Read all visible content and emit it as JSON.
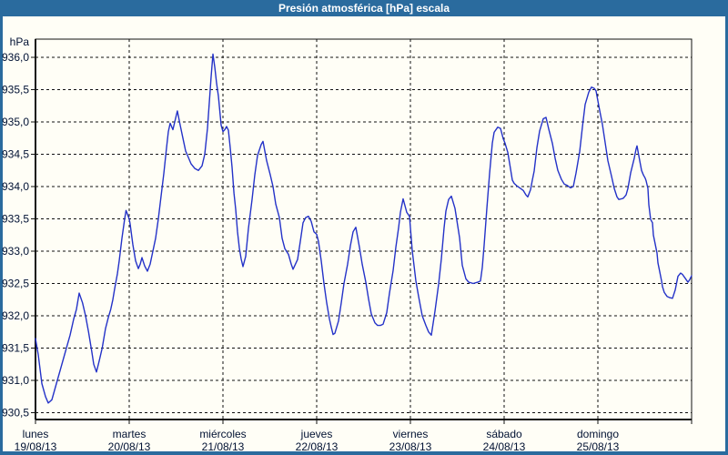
{
  "window": {
    "title": "Presión atmosférica [hPa] escala"
  },
  "colors": {
    "titlebar": "#2a6b9e",
    "frame": "#2a6b9e",
    "content_bg": "#fffef6",
    "grid": "#111111",
    "text": "#001133",
    "line": "#2432c8"
  },
  "chart_data": {
    "type": "line",
    "title": "Presión atmosférica [hPa] escala",
    "xlabel": "",
    "ylabel": "hPa",
    "ylim": [
      930.5,
      936.0
    ],
    "x_range_days": [
      0,
      7
    ],
    "grid": "dashed",
    "legend": "none",
    "y_tick_values": [
      936.0,
      935.5,
      935.0,
      934.5,
      934.0,
      933.5,
      933.0,
      932.5,
      932.0,
      931.5,
      931.0,
      930.5
    ],
    "y_tick_labels": [
      "936,0",
      "935,5",
      "935,0",
      "934,5",
      "934,0",
      "933,5",
      "933,0",
      "932,5",
      "932,0",
      "931,5",
      "931,0",
      "930,5"
    ],
    "x_labels": [
      {
        "t": 0,
        "day": "lunes",
        "date": "19/08/13"
      },
      {
        "t": 1,
        "day": "martes",
        "date": "20/08/13"
      },
      {
        "t": 2,
        "day": "miércoles",
        "date": "21/08/13"
      },
      {
        "t": 3,
        "day": "jueves",
        "date": "22/08/13"
      },
      {
        "t": 4,
        "day": "viernes",
        "date": "23/08/13"
      },
      {
        "t": 5,
        "day": "sábado",
        "date": "24/08/13"
      },
      {
        "t": 6,
        "day": "domingo",
        "date": "25/08/13"
      }
    ],
    "series": [
      {
        "name": "Presión atmosférica",
        "color": "#2432c8",
        "points": [
          [
            0.0,
            931.65
          ],
          [
            0.029,
            931.4
          ],
          [
            0.068,
            930.95
          ],
          [
            0.107,
            930.75
          ],
          [
            0.136,
            930.65
          ],
          [
            0.175,
            930.7
          ],
          [
            0.223,
            930.95
          ],
          [
            0.272,
            931.2
          ],
          [
            0.32,
            931.45
          ],
          [
            0.369,
            931.7
          ],
          [
            0.408,
            931.95
          ],
          [
            0.437,
            932.1
          ],
          [
            0.466,
            932.35
          ],
          [
            0.502,
            932.2
          ],
          [
            0.534,
            932.0
          ],
          [
            0.566,
            931.75
          ],
          [
            0.6,
            931.45
          ],
          [
            0.621,
            931.25
          ],
          [
            0.65,
            931.13
          ],
          [
            0.68,
            931.3
          ],
          [
            0.712,
            931.5
          ],
          [
            0.747,
            931.8
          ],
          [
            0.777,
            931.97
          ],
          [
            0.803,
            932.1
          ],
          [
            0.825,
            932.25
          ],
          [
            0.845,
            932.42
          ],
          [
            0.874,
            932.65
          ],
          [
            0.893,
            932.85
          ],
          [
            0.922,
            933.2
          ],
          [
            0.951,
            933.5
          ],
          [
            0.966,
            933.63
          ],
          [
            1.0,
            933.5
          ],
          [
            1.01,
            933.42
          ],
          [
            1.039,
            933.1
          ],
          [
            1.068,
            932.85
          ],
          [
            1.097,
            932.73
          ],
          [
            1.117,
            932.8
          ],
          [
            1.136,
            932.9
          ],
          [
            1.165,
            932.77
          ],
          [
            1.194,
            932.69
          ],
          [
            1.223,
            932.8
          ],
          [
            1.252,
            933.0
          ],
          [
            1.282,
            933.2
          ],
          [
            1.311,
            933.5
          ],
          [
            1.34,
            933.85
          ],
          [
            1.369,
            934.2
          ],
          [
            1.398,
            934.6
          ],
          [
            1.417,
            934.85
          ],
          [
            1.437,
            934.98
          ],
          [
            1.466,
            934.88
          ],
          [
            1.485,
            935.0
          ],
          [
            1.514,
            935.17
          ],
          [
            1.544,
            934.95
          ],
          [
            1.573,
            934.75
          ],
          [
            1.602,
            934.55
          ],
          [
            1.631,
            934.45
          ],
          [
            1.66,
            934.35
          ],
          [
            1.699,
            934.28
          ],
          [
            1.738,
            934.25
          ],
          [
            1.777,
            934.32
          ],
          [
            1.806,
            934.5
          ],
          [
            1.835,
            934.9
          ],
          [
            1.854,
            935.3
          ],
          [
            1.874,
            935.7
          ],
          [
            1.893,
            936.05
          ],
          [
            1.913,
            935.85
          ],
          [
            1.932,
            935.6
          ],
          [
            1.951,
            935.4
          ],
          [
            1.981,
            934.95
          ],
          [
            2.0,
            934.85
          ],
          [
            2.019,
            934.88
          ],
          [
            2.039,
            934.93
          ],
          [
            2.058,
            934.87
          ],
          [
            2.078,
            934.6
          ],
          [
            2.097,
            934.3
          ],
          [
            2.117,
            933.9
          ],
          [
            2.136,
            933.65
          ],
          [
            2.155,
            933.3
          ],
          [
            2.175,
            933.05
          ],
          [
            2.194,
            932.88
          ],
          [
            2.214,
            932.76
          ],
          [
            2.243,
            932.92
          ],
          [
            2.272,
            933.35
          ],
          [
            2.311,
            933.8
          ],
          [
            2.34,
            934.18
          ],
          [
            2.369,
            934.48
          ],
          [
            2.408,
            934.65
          ],
          [
            2.427,
            934.7
          ],
          [
            2.466,
            934.4
          ],
          [
            2.505,
            934.18
          ],
          [
            2.534,
            934.0
          ],
          [
            2.563,
            933.73
          ],
          [
            2.602,
            933.52
          ],
          [
            2.631,
            933.2
          ],
          [
            2.66,
            933.04
          ],
          [
            2.699,
            932.95
          ],
          [
            2.728,
            932.8
          ],
          [
            2.748,
            932.72
          ],
          [
            2.796,
            932.87
          ],
          [
            2.825,
            933.15
          ],
          [
            2.854,
            933.44
          ],
          [
            2.883,
            933.52
          ],
          [
            2.913,
            933.54
          ],
          [
            2.942,
            933.46
          ],
          [
            2.971,
            933.3
          ],
          [
            3.0,
            933.26
          ],
          [
            3.019,
            933.15
          ],
          [
            3.049,
            932.85
          ],
          [
            3.078,
            932.5
          ],
          [
            3.107,
            932.2
          ],
          [
            3.136,
            931.95
          ],
          [
            3.156,
            931.82
          ],
          [
            3.175,
            931.71
          ],
          [
            3.194,
            931.73
          ],
          [
            3.233,
            931.92
          ],
          [
            3.262,
            932.2
          ],
          [
            3.291,
            932.5
          ],
          [
            3.33,
            932.8
          ],
          [
            3.359,
            933.08
          ],
          [
            3.388,
            933.3
          ],
          [
            3.417,
            933.37
          ],
          [
            3.456,
            933.06
          ],
          [
            3.485,
            932.8
          ],
          [
            3.524,
            932.52
          ],
          [
            3.553,
            932.26
          ],
          [
            3.583,
            932.03
          ],
          [
            3.621,
            931.89
          ],
          [
            3.65,
            931.85
          ],
          [
            3.68,
            931.85
          ],
          [
            3.709,
            931.87
          ],
          [
            3.748,
            932.05
          ],
          [
            3.777,
            932.35
          ],
          [
            3.816,
            932.7
          ],
          [
            3.845,
            933.06
          ],
          [
            3.874,
            933.36
          ],
          [
            3.893,
            933.6
          ],
          [
            3.922,
            933.81
          ],
          [
            3.961,
            933.6
          ],
          [
            3.99,
            933.54
          ],
          [
            4.019,
            933.01
          ],
          [
            4.058,
            932.54
          ],
          [
            4.087,
            932.3
          ],
          [
            4.126,
            932.0
          ],
          [
            4.165,
            931.85
          ],
          [
            4.194,
            931.75
          ],
          [
            4.223,
            931.7
          ],
          [
            4.262,
            932.07
          ],
          [
            4.301,
            932.49
          ],
          [
            4.33,
            932.88
          ],
          [
            4.359,
            933.36
          ],
          [
            4.379,
            933.62
          ],
          [
            4.408,
            933.8
          ],
          [
            4.437,
            933.85
          ],
          [
            4.476,
            933.66
          ],
          [
            4.524,
            933.21
          ],
          [
            4.553,
            932.78
          ],
          [
            4.592,
            932.57
          ],
          [
            4.621,
            932.52
          ],
          [
            4.67,
            932.5
          ],
          [
            4.718,
            932.52
          ],
          [
            4.748,
            932.54
          ],
          [
            4.767,
            932.75
          ],
          [
            4.786,
            933.09
          ],
          [
            4.816,
            933.66
          ],
          [
            4.845,
            934.2
          ],
          [
            4.874,
            934.67
          ],
          [
            4.893,
            934.84
          ],
          [
            4.932,
            934.92
          ],
          [
            4.961,
            934.9
          ],
          [
            4.99,
            934.74
          ],
          [
            5.01,
            934.67
          ],
          [
            5.039,
            934.53
          ],
          [
            5.058,
            934.36
          ],
          [
            5.087,
            934.1
          ],
          [
            5.107,
            934.05
          ],
          [
            5.136,
            934.01
          ],
          [
            5.175,
            933.97
          ],
          [
            5.204,
            933.94
          ],
          [
            5.233,
            933.87
          ],
          [
            5.252,
            933.84
          ],
          [
            5.282,
            933.95
          ],
          [
            5.301,
            934.1
          ],
          [
            5.32,
            934.24
          ],
          [
            5.35,
            934.6
          ],
          [
            5.379,
            934.86
          ],
          [
            5.417,
            935.05
          ],
          [
            5.447,
            935.07
          ],
          [
            5.476,
            934.89
          ],
          [
            5.515,
            934.67
          ],
          [
            5.544,
            934.44
          ],
          [
            5.573,
            934.25
          ],
          [
            5.612,
            934.11
          ],
          [
            5.641,
            934.04
          ],
          [
            5.67,
            934.02
          ],
          [
            5.709,
            933.98
          ],
          [
            5.738,
            934.0
          ],
          [
            5.767,
            934.21
          ],
          [
            5.806,
            934.54
          ],
          [
            5.835,
            934.92
          ],
          [
            5.864,
            935.27
          ],
          [
            5.903,
            935.46
          ],
          [
            5.932,
            935.54
          ],
          [
            5.961,
            935.52
          ],
          [
            5.981,
            935.48
          ],
          [
            6.01,
            935.25
          ],
          [
            6.049,
            934.96
          ],
          [
            6.078,
            934.68
          ],
          [
            6.107,
            934.4
          ],
          [
            6.146,
            934.16
          ],
          [
            6.175,
            933.97
          ],
          [
            6.204,
            933.84
          ],
          [
            6.223,
            933.8
          ],
          [
            6.252,
            933.81
          ],
          [
            6.272,
            933.82
          ],
          [
            6.301,
            933.87
          ],
          [
            6.32,
            933.97
          ],
          [
            6.35,
            934.21
          ],
          [
            6.388,
            934.44
          ],
          [
            6.408,
            934.58
          ],
          [
            6.417,
            934.63
          ],
          [
            6.447,
            934.4
          ],
          [
            6.466,
            934.25
          ],
          [
            6.485,
            934.18
          ],
          [
            6.505,
            934.13
          ],
          [
            6.515,
            934.09
          ],
          [
            6.534,
            933.97
          ],
          [
            6.544,
            933.72
          ],
          [
            6.563,
            933.49
          ],
          [
            6.583,
            933.44
          ],
          [
            6.592,
            933.25
          ],
          [
            6.612,
            933.11
          ],
          [
            6.631,
            932.97
          ],
          [
            6.641,
            932.82
          ],
          [
            6.66,
            932.68
          ],
          [
            6.68,
            932.54
          ],
          [
            6.689,
            932.45
          ],
          [
            6.709,
            932.36
          ],
          [
            6.738,
            932.3
          ],
          [
            6.767,
            932.28
          ],
          [
            6.796,
            932.27
          ],
          [
            6.825,
            932.4
          ],
          [
            6.854,
            932.61
          ],
          [
            6.883,
            932.66
          ],
          [
            6.903,
            932.64
          ],
          [
            6.932,
            932.58
          ],
          [
            6.961,
            932.52
          ],
          [
            6.981,
            932.56
          ],
          [
            7.0,
            932.62
          ]
        ]
      }
    ]
  }
}
